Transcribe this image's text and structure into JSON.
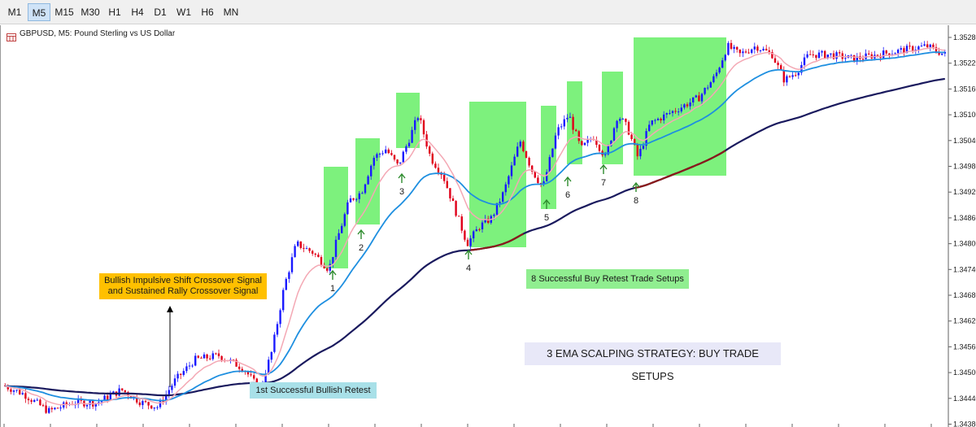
{
  "toolbar": {
    "timeframes": [
      "M1",
      "M5",
      "M15",
      "M30",
      "H1",
      "H4",
      "D1",
      "W1",
      "H6",
      "MN"
    ],
    "active": "M5"
  },
  "chart": {
    "title": "GBPUSD, M5:  Pound Sterling vs US Dollar",
    "price_axis_labels": [
      "1.35280",
      "1.35220",
      "1.35160",
      "1.35100",
      "1.35040",
      "1.34980",
      "1.34920",
      "1.34860",
      "1.34800",
      "1.34740",
      "1.34680",
      "1.34620",
      "1.34560",
      "1.34500",
      "1.34440",
      "1.34380"
    ],
    "setup_labels": [
      "1",
      "2",
      "3",
      "4",
      "5",
      "6",
      "7",
      "8"
    ],
    "annotations": {
      "crossover_line1": "Bullish Impulsive Shift Crossover Signal",
      "crossover_line2": "and Sustained Rally Crossover Signal",
      "first_retest": "1st Successful Bullish Retest",
      "buy_setups": "8 Successful Buy Retest Trade Setups",
      "strategy_title": "3 EMA SCALPING STRATEGY: BUY TRADE SETUPS"
    },
    "colors": {
      "bull_candle": "#1a1aff",
      "bear_candle": "#e0001a",
      "ema_fast": "#f4a8b4",
      "ema_mid": "#1e8fe0",
      "ema_slow": "#1a1a5e",
      "highlight_zone": "#66ee66",
      "callout_yellow": "#ffc000",
      "callout_cyan": "#a8e0e8",
      "callout_green": "#90ee90",
      "callout_lavender": "#e8e8f8"
    }
  }
}
